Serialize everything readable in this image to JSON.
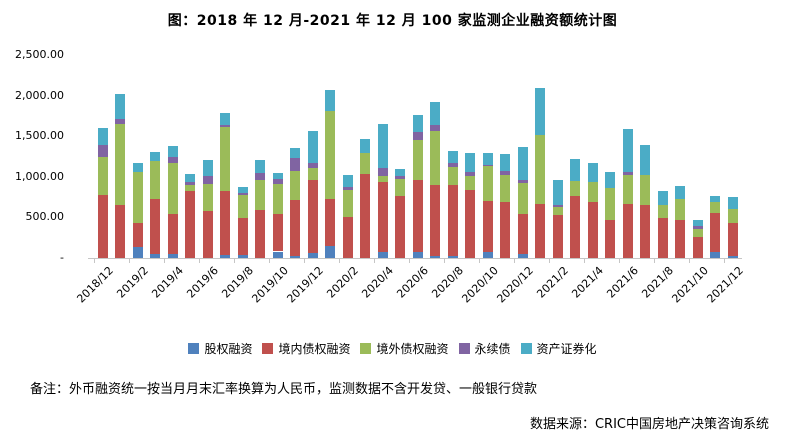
{
  "title": "图：2018 年 12 月-2021 年 12 月 100 家监测企业融资额统计图",
  "footnote": "备注：外币融资统一按当月月末汇率换算为人民币，监测数据不含开发贷、一般银行贷款",
  "source": "数据来源：CRIC中国房地产决策咨询系统",
  "y_axis": {
    "labels": [
      "2,500.00",
      "2,000.00",
      "1,500.00",
      "1,000.00",
      "500.00",
      "-"
    ],
    "max": 2500,
    "tick_interval": 500
  },
  "x_axis": {
    "tick_labels": [
      "2018/12",
      "2019/2",
      "2019/4",
      "2019/6",
      "2019/8",
      "2019/10",
      "2019/12",
      "2020/2",
      "2020/4",
      "2020/6",
      "2020/8",
      "2020/10",
      "2020/12",
      "2021/2",
      "2021/4",
      "2021/6",
      "2021/8",
      "2021/10",
      "2021/12"
    ]
  },
  "legend": [
    {
      "label": "股权融资",
      "color": "#4F81BD"
    },
    {
      "label": "境内债权融资",
      "color": "#C0504D"
    },
    {
      "label": "境外债权融资",
      "color": "#9BBB59"
    },
    {
      "label": "永续债",
      "color": "#8064A2"
    },
    {
      "label": "资产证券化",
      "color": "#4BACC6"
    }
  ],
  "chart_data": {
    "type": "bar",
    "stacked": true,
    "title": "图：2018 年 12 月-2021 年 12 月 100 家监测企业融资额统计图",
    "xlabel": "",
    "ylabel": "",
    "ylim": [
      0,
      2500
    ],
    "grid": false,
    "legend_position": "bottom",
    "categories": [
      "2018/12",
      "2019/1",
      "2019/2",
      "2019/3",
      "2019/4",
      "2019/5",
      "2019/6",
      "2019/7",
      "2019/8",
      "2019/9",
      "2019/10",
      "2019/11",
      "2019/12",
      "2020/1",
      "2020/2",
      "2020/3",
      "2020/4",
      "2020/5",
      "2020/6",
      "2020/7",
      "2020/8",
      "2020/9",
      "2020/10",
      "2020/11",
      "2020/12",
      "2021/1",
      "2021/2",
      "2021/3",
      "2021/4",
      "2021/5",
      "2021/6",
      "2021/7",
      "2021/8",
      "2021/9",
      "2021/10",
      "2021/11",
      "2021/12"
    ],
    "series": [
      {
        "name": "股权融资",
        "color": "#4F81BD",
        "values": [
          0,
          0,
          140,
          55,
          50,
          0,
          0,
          35,
          35,
          0,
          80,
          30,
          60,
          145,
          0,
          0,
          70,
          0,
          80,
          30,
          25,
          0,
          75,
          0,
          55,
          0,
          0,
          0,
          0,
          0,
          0,
          0,
          0,
          0,
          0,
          75,
          30
        ]
      },
      {
        "name": "境内债权融资",
        "color": "#C0504D",
        "values": [
          780,
          655,
          290,
          670,
          490,
          830,
          575,
          795,
          460,
          595,
          465,
          690,
          900,
          585,
          510,
          1035,
          860,
          760,
          875,
          870,
          875,
          840,
          625,
          690,
          490,
          660,
          530,
          765,
          685,
          465,
          660,
          650,
          490,
          465,
          260,
          480,
          400
        ]
      },
      {
        "name": "境外债权融资",
        "color": "#9BBB59",
        "values": [
          465,
          1000,
          635,
          465,
          625,
          75,
          335,
          780,
          280,
          370,
          365,
          350,
          145,
          1075,
          330,
          260,
          80,
          210,
          500,
          660,
          225,
          165,
          430,
          335,
          375,
          850,
          95,
          185,
          250,
          400,
          365,
          370,
          165,
          260,
          100,
          135,
          170
        ]
      },
      {
        "name": "永续债",
        "color": "#8064A2",
        "values": [
          145,
          55,
          0,
          0,
          80,
          35,
          95,
          25,
          30,
          80,
          60,
          165,
          60,
          0,
          40,
          0,
          100,
          35,
          95,
          75,
          45,
          60,
          20,
          50,
          40,
          0,
          30,
          0,
          0,
          0,
          35,
          0,
          0,
          0,
          35,
          0,
          0
        ]
      },
      {
        "name": "资产证券化",
        "color": "#4BACC6",
        "values": [
          210,
          315,
          105,
          110,
          130,
          90,
          205,
          150,
          70,
          165,
          80,
          125,
          400,
          265,
          145,
          170,
          535,
          95,
          215,
          290,
          150,
          225,
          145,
          205,
          405,
          580,
          300,
          265,
          235,
          190,
          525,
          370,
          175,
          160,
          70,
          70,
          150
        ]
      }
    ]
  }
}
